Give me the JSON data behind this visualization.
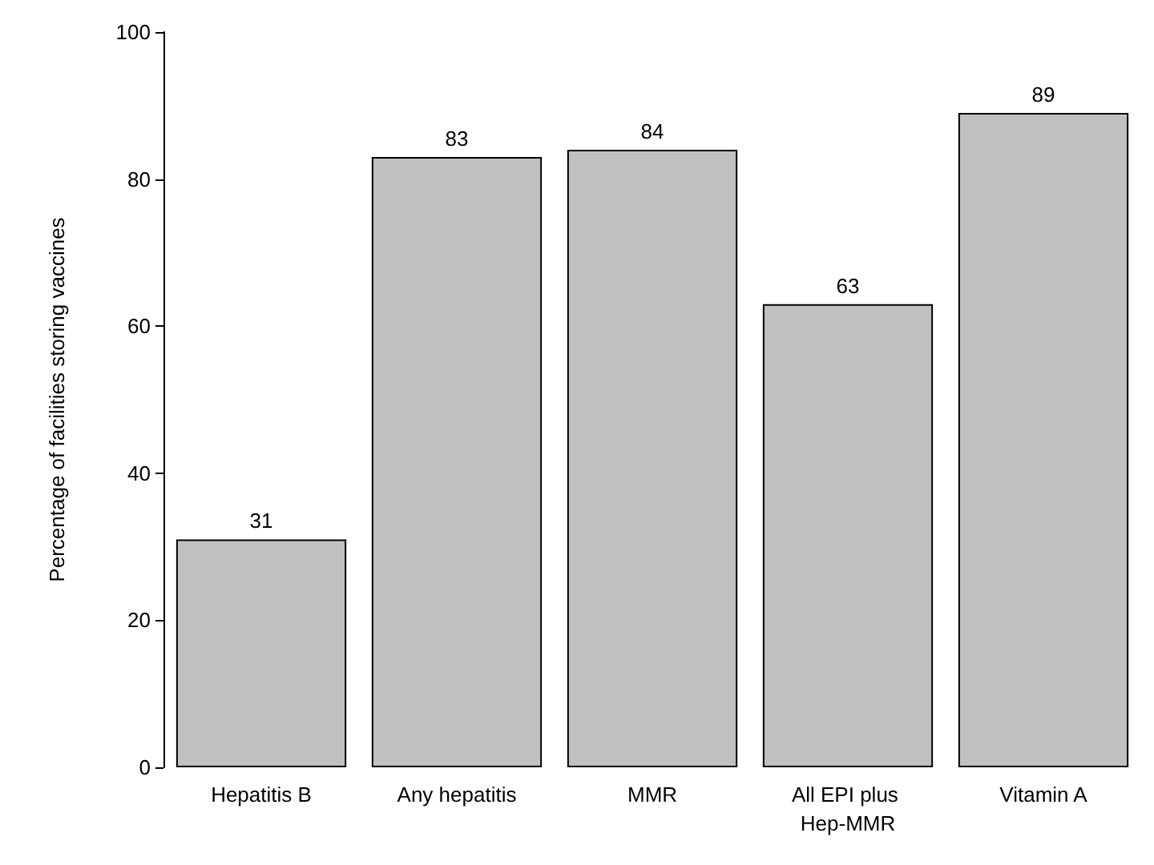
{
  "chart_data": {
    "type": "bar",
    "ylabel": "Percentage of facilities storing vaccines",
    "categories": [
      "Hepatitis B",
      "Any hepatitis",
      "MMR",
      "All EPI plus Hep-MMR",
      "Vitamin A"
    ],
    "values": [
      31,
      83,
      84,
      63,
      89
    ],
    "color": "#c0c0c0",
    "ylim": [
      0,
      100
    ],
    "yticks": [
      0,
      20,
      40,
      60,
      80,
      100
    ],
    "data_labels": true
  }
}
